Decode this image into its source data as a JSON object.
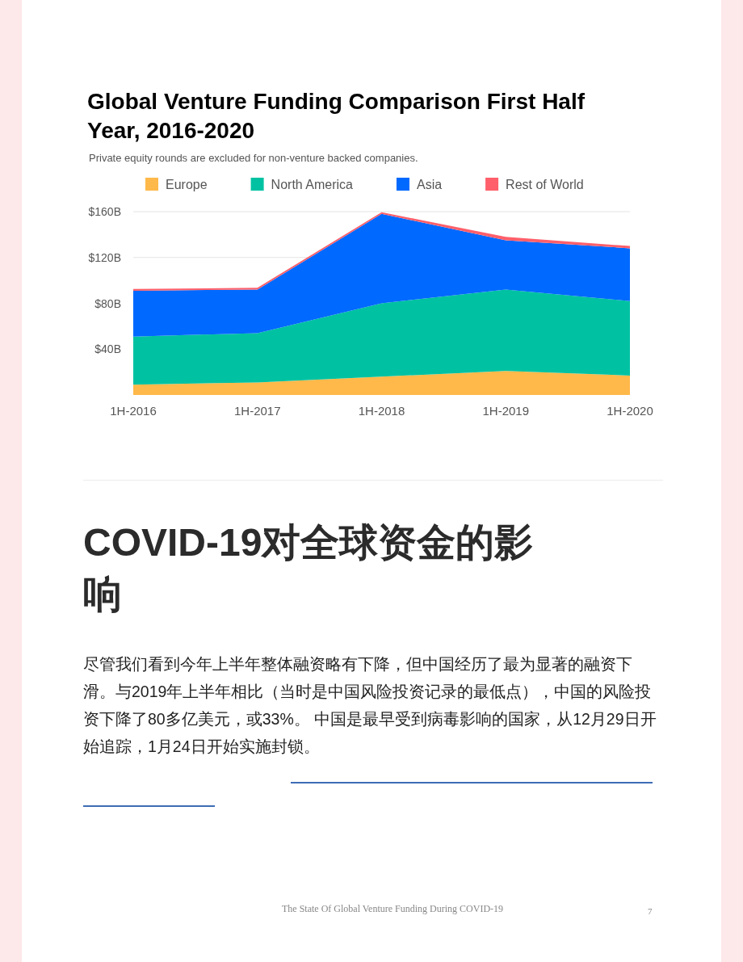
{
  "chart_data": {
    "type": "area",
    "stacked": true,
    "title": "Global Venture Funding Comparison First Half Year, 2016-2020",
    "subtitle": "Private equity rounds are excluded for non-venture backed companies.",
    "categories": [
      "1H-2016",
      "1H-2017",
      "1H-2018",
      "1H-2019",
      "1H-2020"
    ],
    "series": [
      {
        "name": "Europe",
        "color": "#ffb94a",
        "values": [
          9,
          11,
          16,
          21,
          17
        ]
      },
      {
        "name": "North America",
        "color": "#00c2a2",
        "values": [
          42,
          43,
          64,
          71,
          65
        ]
      },
      {
        "name": "Asia",
        "color": "#0069ff",
        "values": [
          40,
          38,
          78,
          43,
          46
        ]
      },
      {
        "name": "Rest of World",
        "color": "#ff5f6a",
        "values": [
          1.5,
          1.5,
          1.5,
          3,
          2
        ]
      }
    ],
    "ylim": [
      0,
      160
    ],
    "yticks": [
      {
        "value": 40,
        "label": "$40B"
      },
      {
        "value": 80,
        "label": "$80B"
      },
      {
        "value": 120,
        "label": "$120B"
      },
      {
        "value": 160,
        "label": "$160B"
      }
    ],
    "grid": "y",
    "legend": "top",
    "annotations": [
      "COVID-19对全球资金的影响",
      "尽管我们看到今年上半年整体融资略有下降，但中国经历了最为显著的融资下滑。与2019年上半年相比（当时是中国风险投资记录的最低点），中国的风险投资下降了80多亿美元，或33%。 中国是最早受到病毒影响的国家，从12月29日开始追踪，1月24日开始实施封锁。",
      "The State Of Global Venture Funding During COVID-19",
      "7"
    ]
  }
}
